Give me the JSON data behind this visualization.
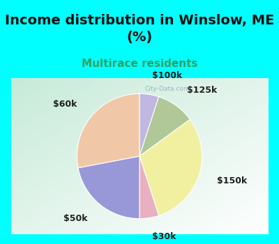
{
  "title": "Income distribution in Winslow, ME\n(%)",
  "subtitle": "Multirace residents",
  "labels": [
    "$100k",
    "$125k",
    "$150k",
    "$30k",
    "$50k",
    "$60k"
  ],
  "sizes": [
    5,
    10,
    30,
    5,
    22,
    28
  ],
  "colors": [
    "#c0b8e0",
    "#b0c898",
    "#f0f0a0",
    "#e8b0c0",
    "#9898d8",
    "#f0c8a8"
  ],
  "background_cyan": "#00ffff",
  "background_chart_tl": "#c8e8d8",
  "background_chart_br": "#f0f8f0",
  "title_fontsize": 14,
  "subtitle_fontsize": 11,
  "subtitle_color": "#30a060",
  "label_color": "#202020",
  "label_fontsize": 9,
  "startangle": 90,
  "title_color": "#101010"
}
